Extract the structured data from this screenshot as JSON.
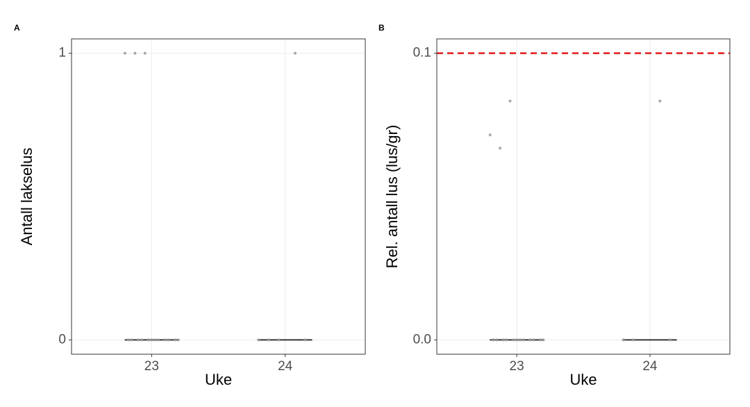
{
  "chart_data": [
    {
      "type": "box",
      "tag": "A",
      "x_label": "Uke",
      "y_label": "Antall lakselus",
      "categories": [
        "23",
        "24"
      ],
      "values": [
        [
          1,
          1,
          1,
          0,
          0,
          0,
          0,
          0,
          0,
          0,
          0,
          0,
          0,
          0,
          0
        ],
        [
          1,
          0,
          0,
          0,
          0
        ]
      ],
      "q1": [
        0,
        0
      ],
      "median": [
        0,
        0
      ],
      "q3": [
        0,
        0
      ],
      "point_color": "#999999",
      "box_color": "#333333",
      "ylim": [
        -0.05,
        1.05
      ],
      "yticks": [
        0,
        1
      ],
      "grid": true
    },
    {
      "type": "box",
      "tag": "B",
      "x_label": "Uke",
      "y_label": "Rel. antall lus (lus/gr)",
      "categories": [
        "23",
        "24"
      ],
      "values": [
        [
          0.0715,
          0.0669,
          0.0833,
          0,
          0,
          0,
          0,
          0,
          0,
          0,
          0,
          0,
          0,
          0,
          0
        ],
        [
          0.0833,
          0,
          0,
          0
        ]
      ],
      "q1": [
        0,
        0
      ],
      "median": [
        0,
        0
      ],
      "q3": [
        0,
        0
      ],
      "point_color": "#999999",
      "box_color": "#333333",
      "hline": 0.1,
      "hline_color": "#e41a1c",
      "ylim": [
        -0.005,
        0.105
      ],
      "yticks": [
        {
          "value": 0,
          "label": "0.0"
        },
        {
          "value": 0.1,
          "label": "0.1"
        }
      ],
      "grid": true
    }
  ]
}
